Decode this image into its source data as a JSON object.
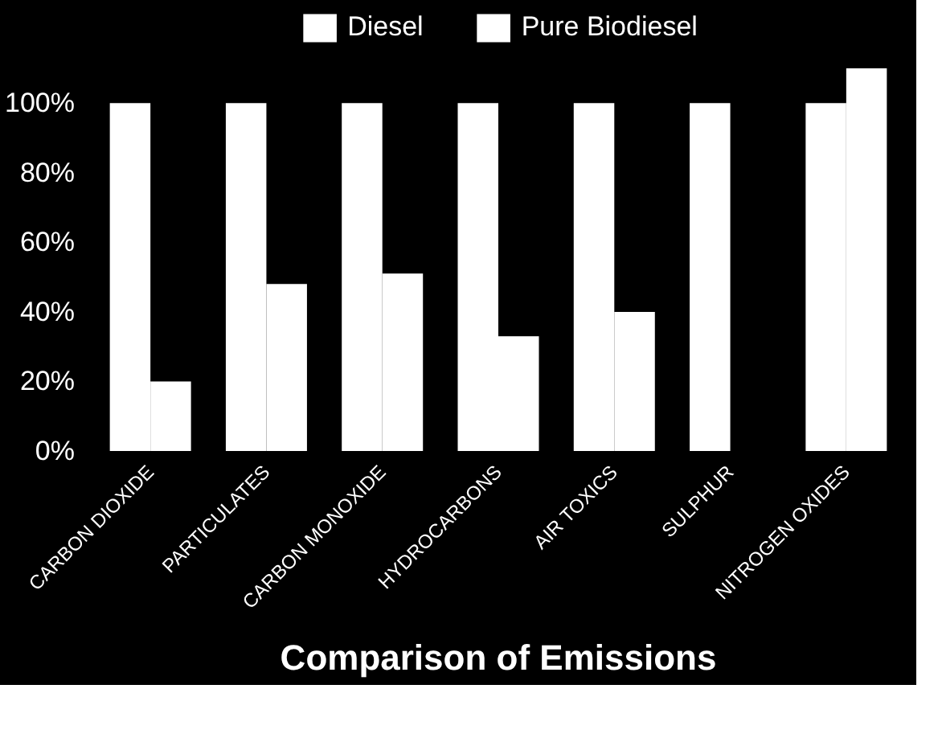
{
  "chart_data": {
    "type": "bar",
    "title": "Comparison of Emissions",
    "categories": [
      "CARBON DIOXIDE",
      "PARTICULATES",
      "CARBON MONOXIDE",
      "HYDROCARBONS",
      "AIR TOXICS",
      "SULPHUR",
      "NITROGEN OXIDES"
    ],
    "series": [
      {
        "name": "Diesel",
        "color": "#ffffff",
        "values": [
          100,
          100,
          100,
          100,
          100,
          100,
          100
        ]
      },
      {
        "name": "Pure Biodiesel",
        "color": "#ffffff",
        "values": [
          20,
          48,
          51,
          33,
          40,
          0,
          110
        ]
      }
    ],
    "ylim": [
      0,
      110
    ],
    "yticks": [
      {
        "value": 0,
        "label": "0%"
      },
      {
        "value": 20,
        "label": "20%"
      },
      {
        "value": 40,
        "label": "40%"
      },
      {
        "value": 60,
        "label": "60%"
      },
      {
        "value": 80,
        "label": "80%"
      },
      {
        "value": 100,
        "label": "100%"
      }
    ],
    "grid": false,
    "legend": "top"
  }
}
